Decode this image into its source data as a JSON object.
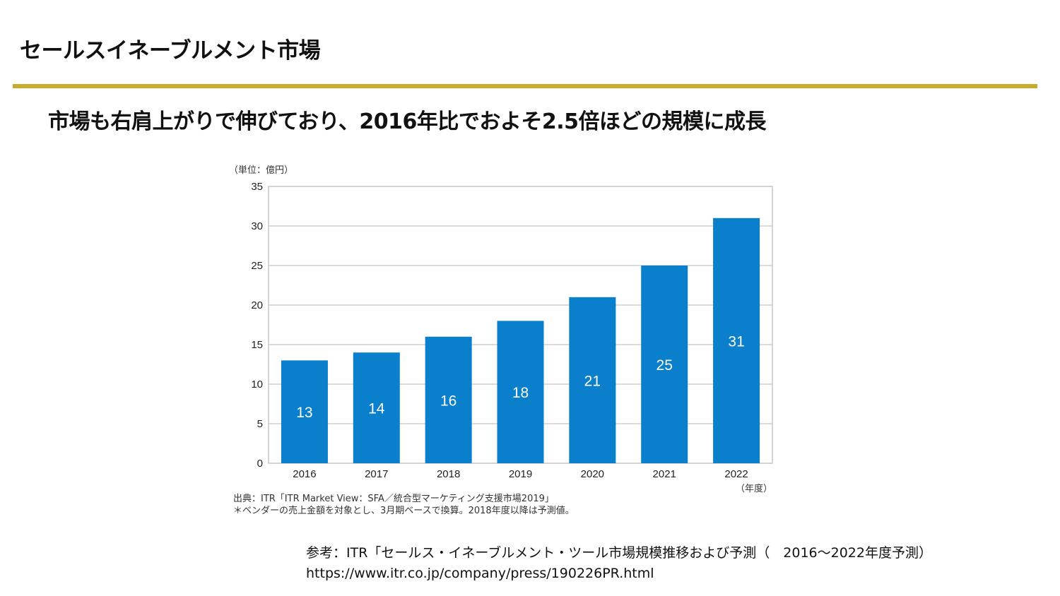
{
  "slide": {
    "title": "セールスイネーブルメント市場",
    "subtitle": "市場も右肩上がりで伸びており、2016年比でおよそ2.5倍ほどの規模に成長"
  },
  "colors": {
    "accent_rule": "#c9ab2b",
    "bar": "#0a7fcc",
    "bar_label": "#ffffff",
    "grid": "#b8b8b8"
  },
  "chart_data": {
    "type": "bar",
    "categories": [
      "2016",
      "2017",
      "2018",
      "2019",
      "2020",
      "2021",
      "2022"
    ],
    "values": [
      13,
      14,
      16,
      18,
      21,
      25,
      31
    ],
    "ylim": [
      0,
      35
    ],
    "yticks": [
      0,
      5,
      10,
      15,
      20,
      25,
      30,
      35
    ],
    "unit_label": "（単位：億円）",
    "xlabel": "（年度）",
    "grid": true,
    "data_labels": true,
    "source_note": "出典：ITR「ITR Market View：SFA／統合型マーケティング支援市場2019」",
    "footnote": "＊ベンダーの売上金額を対象とし、3月期ベースで換算。2018年度以降は予測値。"
  },
  "reference": {
    "line1": "参考：ITR「セールス・イネーブルメント・ツール市場規模推移および予測（　2016〜2022年度予測）",
    "line2": "https://www.itr.co.jp/company/press/190226PR.html"
  }
}
